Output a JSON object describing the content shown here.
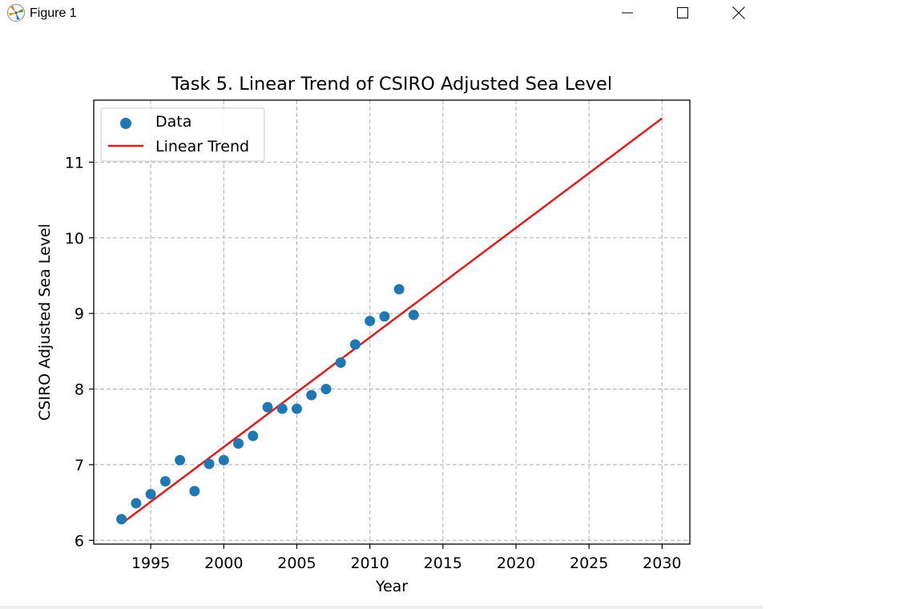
{
  "window": {
    "title": "Figure 1",
    "icon": "matplotlib-logo-icon",
    "controls": [
      "minimize-icon",
      "maximize-icon",
      "close-icon"
    ]
  },
  "chart_data": {
    "type": "scatter",
    "title": "Task 5. Linear Trend of CSIRO Adjusted Sea Level",
    "xlabel": "Year",
    "ylabel": "CSIRO Adjusted Sea Level",
    "xlim": [
      1991.1,
      2031.9
    ],
    "ylim": [
      5.95,
      11.82
    ],
    "xticks": [
      1995,
      2000,
      2005,
      2010,
      2015,
      2020,
      2025,
      2030
    ],
    "yticks": [
      6,
      7,
      8,
      9,
      10,
      11
    ],
    "grid": true,
    "legend_position": "upper left",
    "series": [
      {
        "name": "Data",
        "kind": "scatter",
        "color": "#1f77b4",
        "x": [
          1993,
          1994,
          1995,
          1996,
          1997,
          1998,
          1999,
          2000,
          2001,
          2002,
          2003,
          2004,
          2005,
          2006,
          2007,
          2008,
          2009,
          2010,
          2011,
          2012,
          2013
        ],
        "y": [
          6.28,
          6.49,
          6.61,
          6.78,
          7.06,
          6.65,
          7.01,
          7.06,
          7.28,
          7.38,
          7.76,
          7.74,
          7.74,
          7.92,
          8.0,
          8.35,
          8.59,
          8.9,
          8.96,
          9.32,
          8.98
        ]
      },
      {
        "name": "Linear Trend",
        "kind": "line",
        "color": "#e31a1c",
        "x": [
          1993,
          2030
        ],
        "y": [
          6.22,
          11.58
        ]
      }
    ]
  }
}
